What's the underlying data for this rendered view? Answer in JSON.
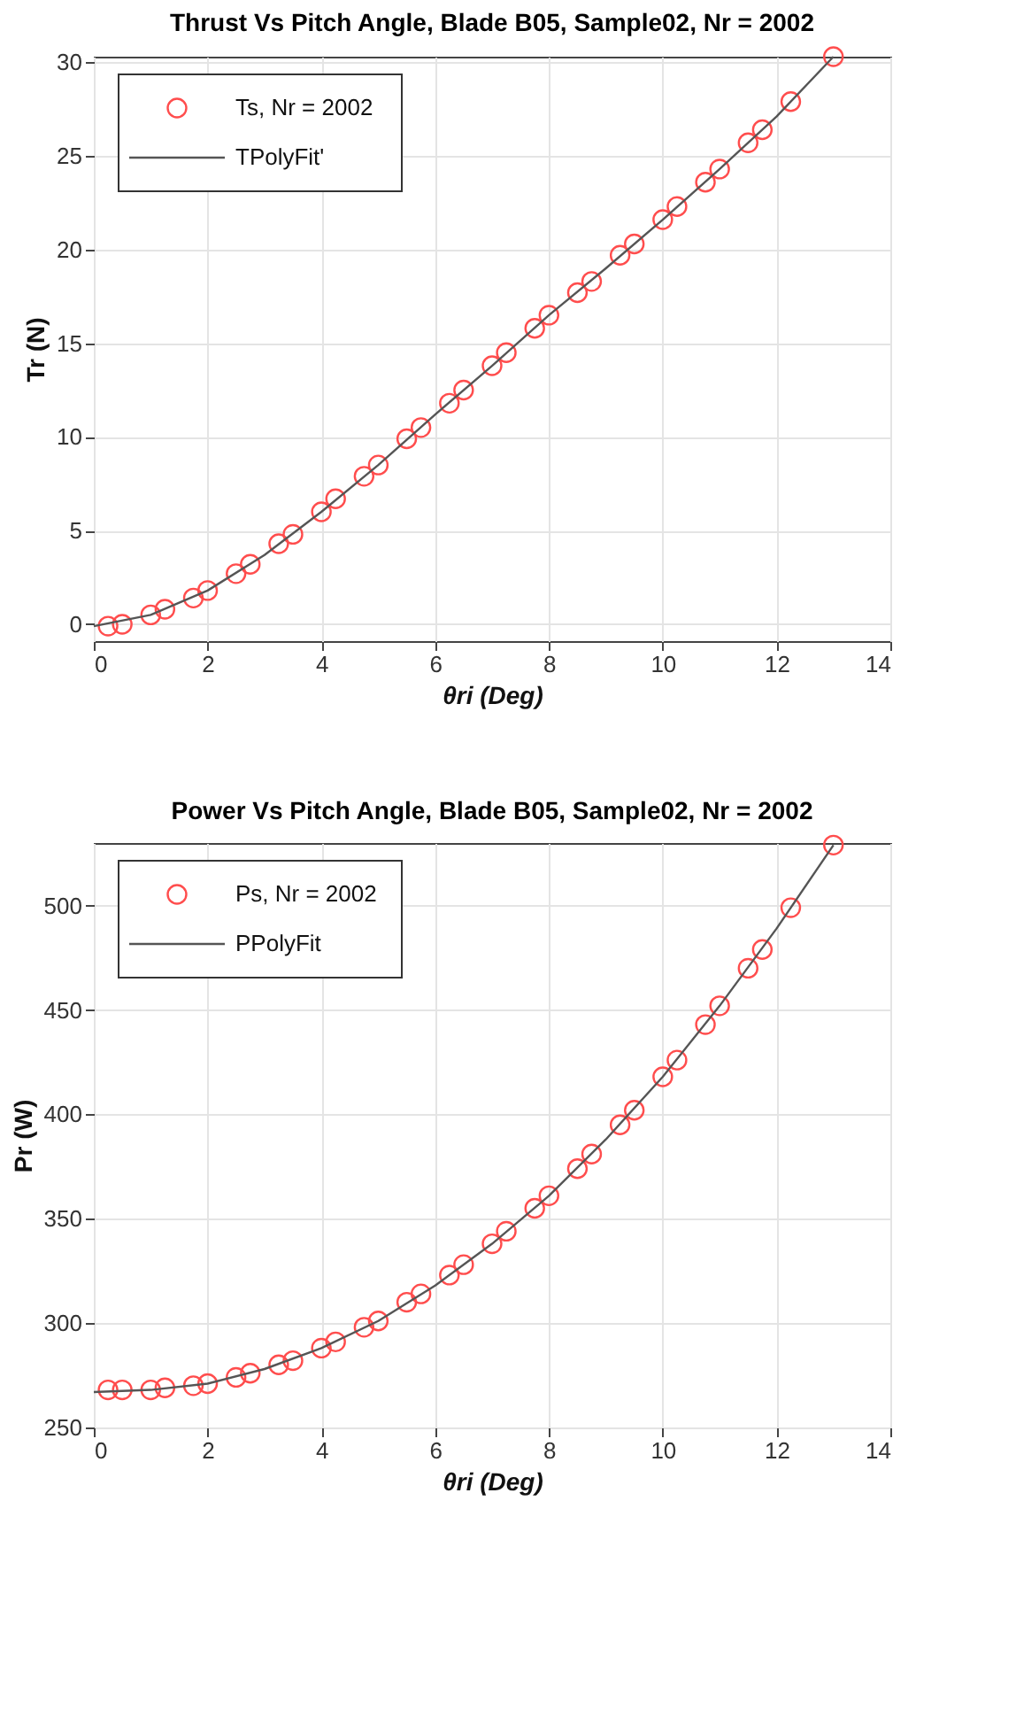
{
  "chart_data": [
    {
      "type": "scatter",
      "title": "Thrust Vs Pitch Angle, Blade B05, Sample02, Nr = 2002",
      "xlabel": "θri (Deg)",
      "ylabel": "Tr (N)",
      "xlim": [
        0,
        14
      ],
      "xticks": [
        0,
        2,
        4,
        6,
        8,
        10,
        12,
        14
      ],
      "ylim": [
        -0.9,
        30.3
      ],
      "yticks": [
        0,
        5,
        10,
        15,
        20,
        25,
        30
      ],
      "grid": true,
      "legend": "top left",
      "series": [
        {
          "name": "Ts, Nr = 2002",
          "marker": "circle",
          "color": "#ff4d4d",
          "x": [
            0.25,
            0.5,
            1,
            1.25,
            1.75,
            2,
            2.5,
            2.75,
            3.25,
            3.5,
            4,
            4.25,
            4.75,
            5,
            5.5,
            5.75,
            6.25,
            6.5,
            7,
            7.25,
            7.75,
            8,
            8.5,
            8.75,
            9.25,
            9.5,
            10,
            10.25,
            10.75,
            11,
            11.5,
            11.75,
            12.25,
            13
          ],
          "values": [
            -0.1,
            0.0,
            0.5,
            0.8,
            1.4,
            1.8,
            2.7,
            3.2,
            4.3,
            4.8,
            6.0,
            6.7,
            7.9,
            8.5,
            9.9,
            10.5,
            11.8,
            12.5,
            13.8,
            14.5,
            15.8,
            16.5,
            17.7,
            18.3,
            19.7,
            20.3,
            21.6,
            22.3,
            23.6,
            24.3,
            25.7,
            26.4,
            27.9,
            30.3
          ]
        },
        {
          "name": "TPolyFit'",
          "type": "line",
          "marker": "none",
          "line_style": "solid",
          "color": "#555555",
          "x": [
            0,
            1,
            2,
            3,
            4,
            5,
            6,
            7,
            8,
            9,
            10,
            11,
            12,
            13
          ],
          "values": [
            -0.1,
            0.5,
            1.8,
            3.7,
            6.0,
            8.5,
            11.2,
            13.8,
            16.5,
            19.0,
            21.6,
            24.3,
            27.1,
            30.3
          ]
        }
      ]
    },
    {
      "type": "scatter",
      "title": "Power Vs Pitch Angle, Blade B05, Sample02, Nr = 2002",
      "xlabel": "θri (Deg)",
      "ylabel": "Pr (W)",
      "xlim": [
        0,
        14
      ],
      "xticks": [
        0,
        2,
        4,
        6,
        8,
        10,
        12,
        14
      ],
      "ylim": [
        250,
        530
      ],
      "yticks": [
        250,
        300,
        350,
        400,
        450,
        500
      ],
      "grid": true,
      "legend": "top left",
      "series": [
        {
          "name": "Ps, Nr = 2002",
          "marker": "circle",
          "color": "#ff4d4d",
          "x": [
            0.25,
            0.5,
            1,
            1.25,
            1.75,
            2,
            2.5,
            2.75,
            3.25,
            3.5,
            4,
            4.25,
            4.75,
            5,
            5.5,
            5.75,
            6.25,
            6.5,
            7,
            7.25,
            7.75,
            8,
            8.5,
            8.75,
            9.25,
            9.5,
            10,
            10.25,
            10.75,
            11,
            11.5,
            11.75,
            12.25,
            13
          ],
          "values": [
            268,
            268,
            268,
            269,
            270,
            271,
            274,
            276,
            280,
            282,
            288,
            291,
            298,
            301,
            310,
            314,
            323,
            328,
            338,
            344,
            355,
            361,
            374,
            381,
            395,
            402,
            418,
            426,
            443,
            452,
            470,
            479,
            499,
            529
          ]
        },
        {
          "name": "PPolyFit",
          "type": "line",
          "marker": "none",
          "line_style": "solid",
          "color": "#555555",
          "x": [
            0,
            1,
            2,
            3,
            4,
            5,
            6,
            7,
            8,
            9,
            10,
            11,
            12,
            13
          ],
          "values": [
            267,
            268,
            271,
            278,
            288,
            301,
            318,
            338,
            361,
            388,
            418,
            452,
            489,
            529
          ]
        }
      ]
    }
  ]
}
